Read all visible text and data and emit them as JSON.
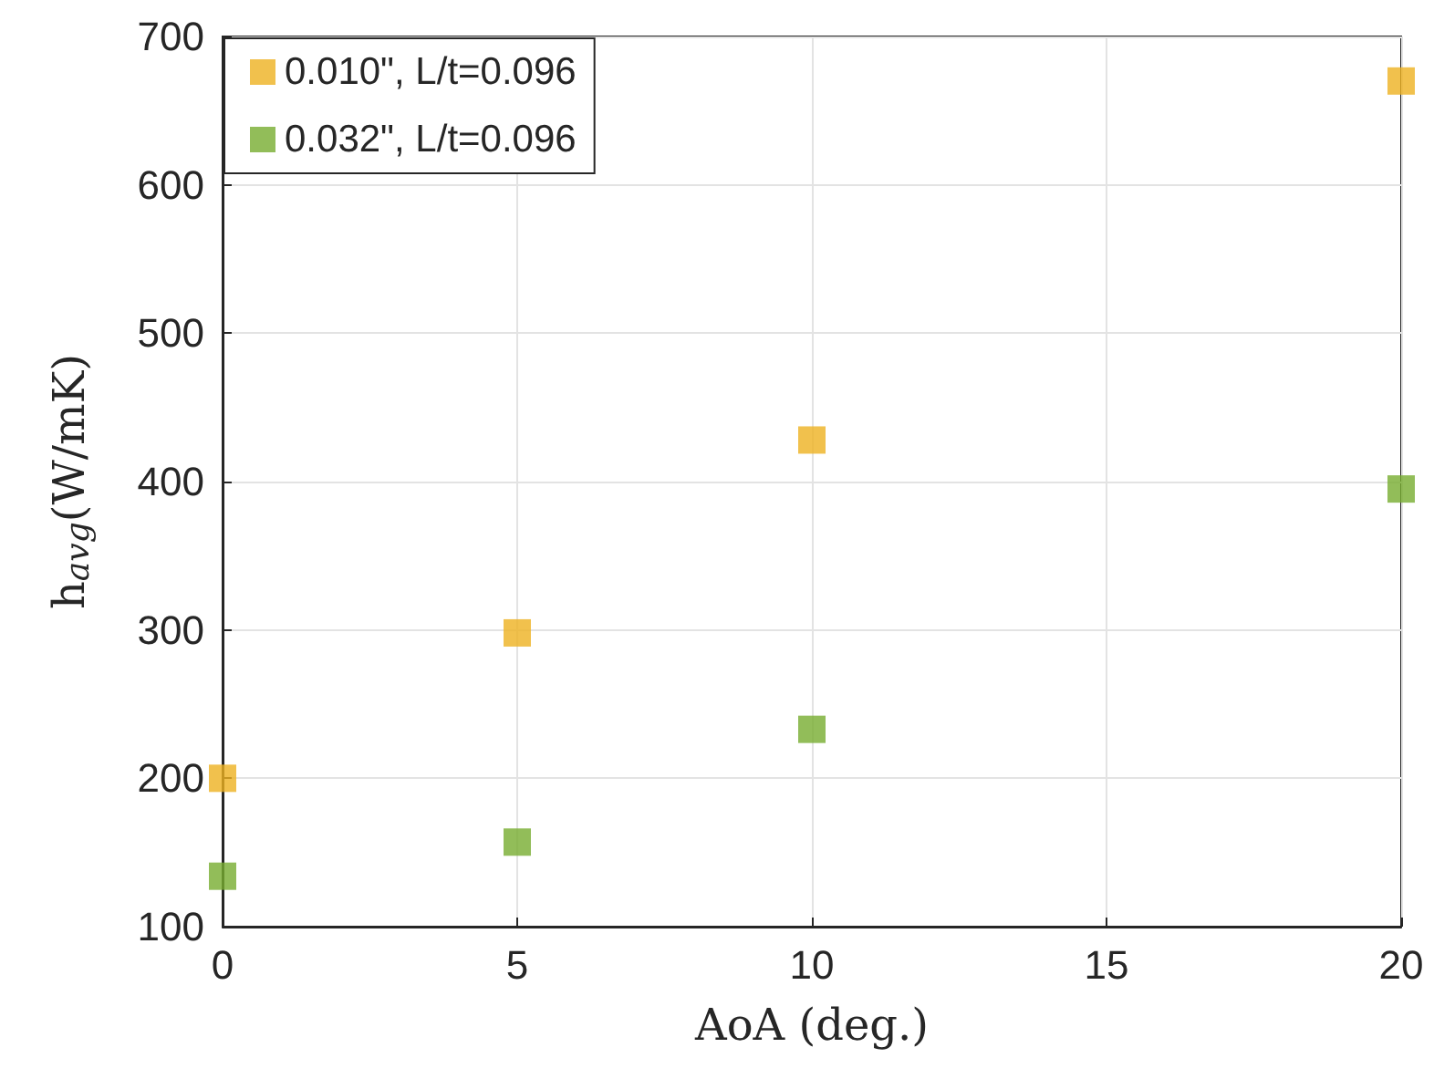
{
  "chart_data": {
    "type": "scatter",
    "xlabel": "AoA (deg.)",
    "ylabel": "h$_{avg}$(W/mK)",
    "x": [
      0,
      5,
      10,
      20
    ],
    "series": [
      {
        "name": "0.010\", L/t=0.096",
        "color": "#edb120",
        "values": [
          200,
          298,
          428,
          670
        ]
      },
      {
        "name": "0.032\", L/t=0.096",
        "color": "#77ac30",
        "values": [
          134,
          157,
          233,
          395
        ]
      }
    ],
    "xlim": [
      0,
      20
    ],
    "xticks": [
      0,
      5,
      10,
      15,
      20
    ],
    "ylim": [
      100,
      700
    ],
    "yticks": [
      100,
      200,
      300,
      400,
      500,
      600,
      700
    ],
    "grid": true,
    "legend": "top left",
    "marker": "square"
  }
}
